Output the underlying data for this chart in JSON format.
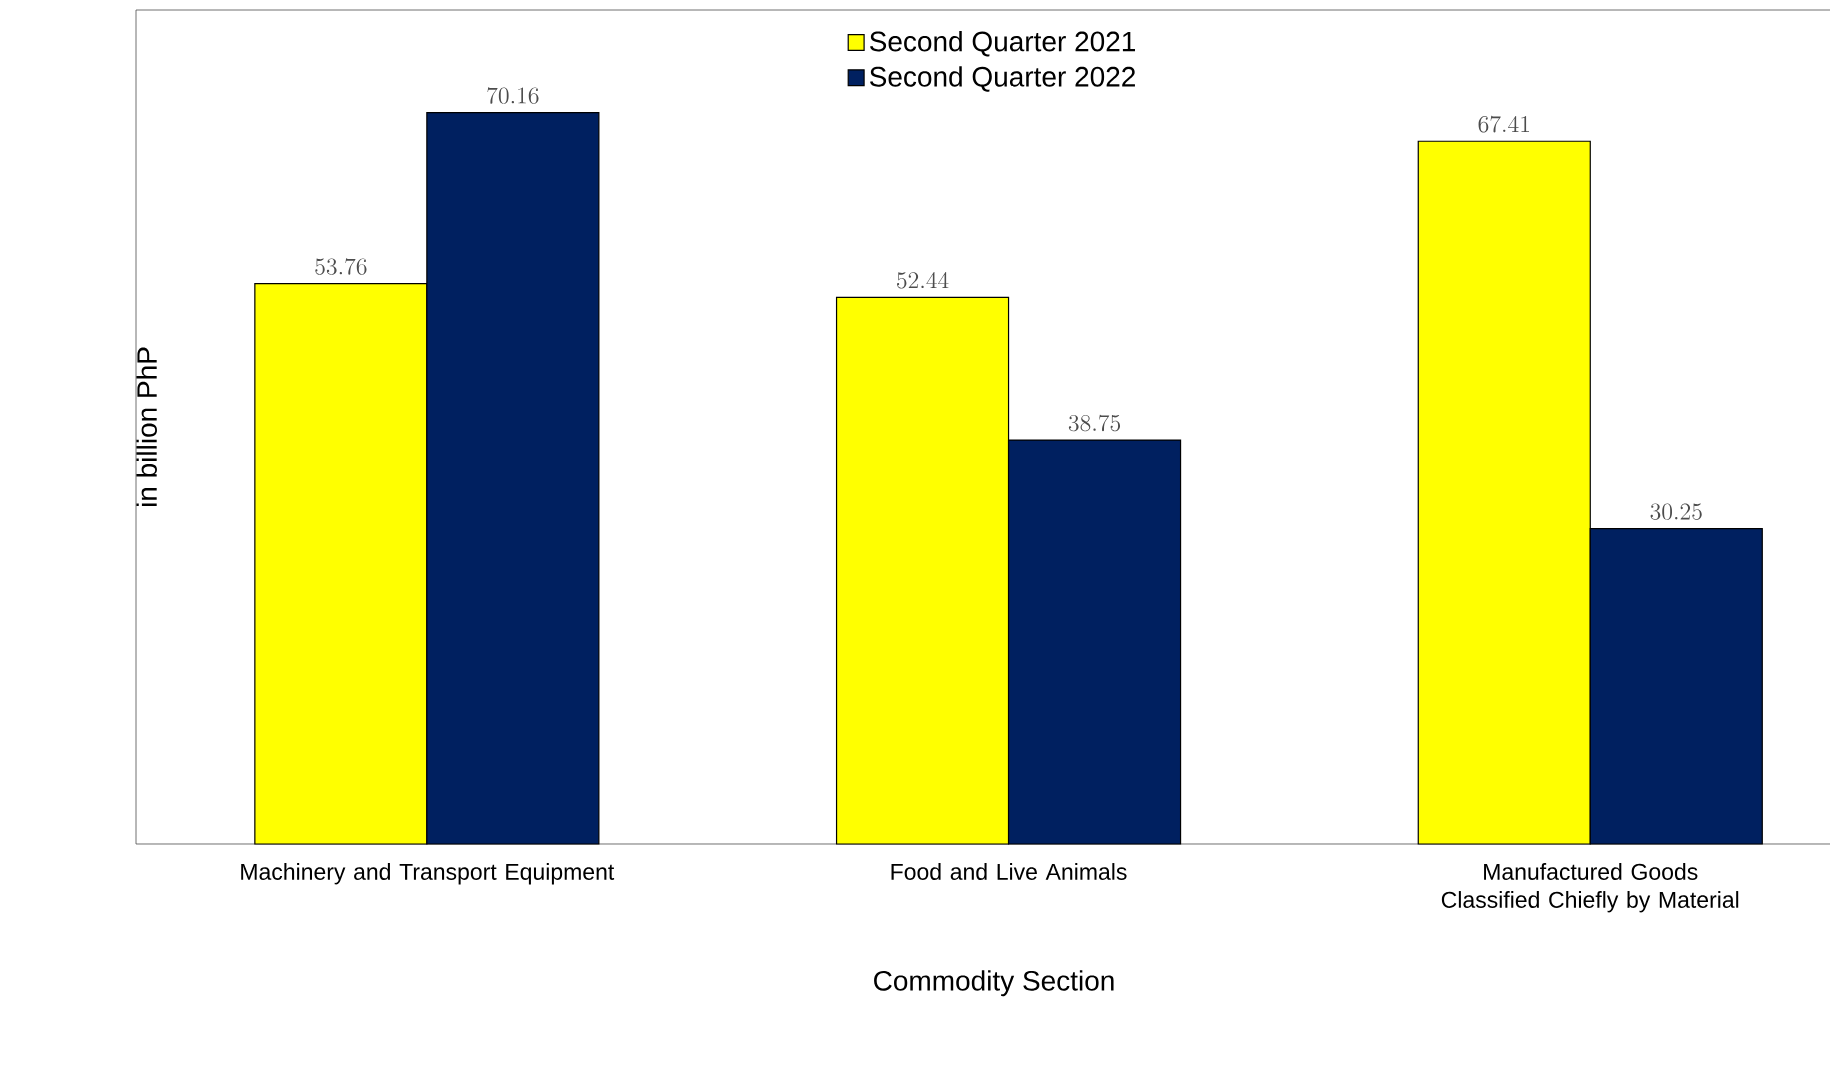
{
  "chart_data": {
    "type": "bar",
    "xlabel": "Commodity Section",
    "ylabel": "in billion PhP",
    "categories": [
      "Machinery and Transport Equipment",
      "Food and Live Animals",
      "Manufactured Goods Classified Chiefly by Material"
    ],
    "series": [
      {
        "name": "Second Quarter 2021",
        "color": "#ffff00",
        "values": [
          53.76,
          52.44,
          67.41
        ]
      },
      {
        "name": "Second Quarter 2022",
        "color": "#002060",
        "values": [
          70.16,
          38.75,
          30.25
        ]
      }
    ],
    "ylim": [
      0,
      80
    ],
    "data_labels": true,
    "legend": "top",
    "tick_labels": "x"
  }
}
